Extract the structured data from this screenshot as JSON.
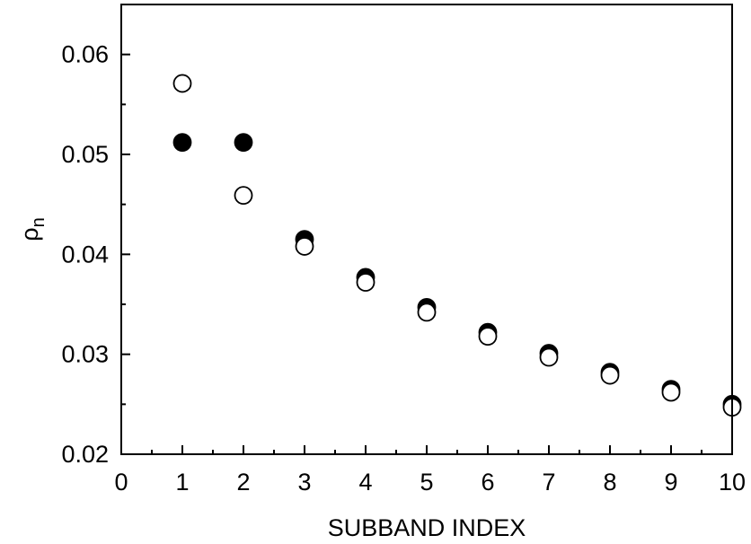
{
  "chart_data": {
    "type": "scatter",
    "xlabel": "SUBBAND INDEX",
    "ylabel": "ρ",
    "ylabel_subscript": "n",
    "xlim": [
      0,
      10
    ],
    "ylim": [
      0.02,
      0.065
    ],
    "x_ticks": [
      0,
      1,
      2,
      3,
      4,
      5,
      6,
      7,
      8,
      9,
      10
    ],
    "x_tick_labels": [
      "0",
      "1",
      "2",
      "3",
      "4",
      "5",
      "6",
      "7",
      "8",
      "9",
      "10"
    ],
    "y_ticks": [
      0.02,
      0.03,
      0.04,
      0.05,
      0.06
    ],
    "y_tick_labels": [
      "0.02",
      "0.03",
      "0.04",
      "0.05",
      "0.06"
    ],
    "grid": false,
    "legend": "none",
    "series": [
      {
        "marker": "filled-circle",
        "color": "#000000",
        "x": [
          1,
          2,
          3,
          4,
          5,
          6,
          7,
          8,
          9,
          10
        ],
        "y": [
          0.0512,
          0.0512,
          0.0415,
          0.0377,
          0.0347,
          0.0322,
          0.0301,
          0.0282,
          0.0265,
          0.025
        ]
      },
      {
        "marker": "open-circle",
        "color": "#000000",
        "x": [
          1,
          2,
          3,
          4,
          5,
          6,
          7,
          8,
          9,
          10
        ],
        "y": [
          0.0571,
          0.0459,
          0.0408,
          0.0372,
          0.0342,
          0.0318,
          0.0297,
          0.0279,
          0.0262,
          0.0247
        ]
      }
    ]
  }
}
